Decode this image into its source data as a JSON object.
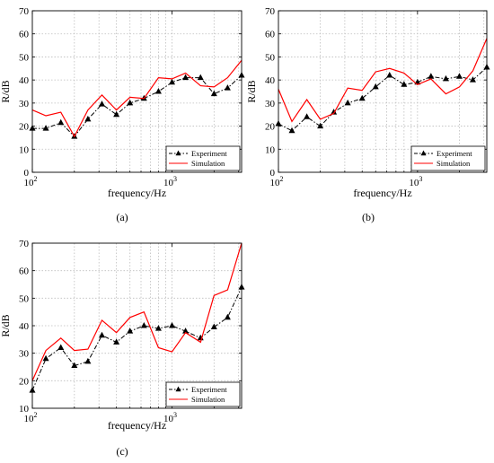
{
  "figure": {
    "colors": {
      "experiment": "#000000",
      "simulation": "#ff0000"
    }
  },
  "chart_data": [
    {
      "type": "line",
      "caption": "(a)",
      "xlabel": "frequency/Hz",
      "ylabel": "R/dB",
      "xscale": "log",
      "xlim": [
        100,
        3150
      ],
      "ylim": [
        0,
        70
      ],
      "yticks": [
        "0",
        "10",
        "20",
        "30",
        "40",
        "50",
        "60",
        "70"
      ],
      "xticks": [
        {
          "base": "10",
          "exp": "2"
        },
        {
          "base": "10",
          "exp": "3"
        }
      ],
      "legend_position": "bottom-right",
      "x": [
        100,
        125,
        160,
        200,
        250,
        315,
        400,
        500,
        630,
        800,
        1000,
        1250,
        1600,
        2000,
        2500,
        3150
      ],
      "series": [
        {
          "name": "Experiment",
          "style": "dash-dot-triangle",
          "values": [
            19,
            19,
            21.5,
            15.5,
            23,
            29.5,
            25,
            30,
            32,
            35,
            39,
            41,
            41,
            34,
            36.5,
            42
          ]
        },
        {
          "name": "Simulation",
          "style": "solid",
          "values": [
            27,
            24.5,
            26,
            15.5,
            27,
            33.5,
            27,
            32.5,
            32,
            41,
            40.5,
            43,
            37.5,
            37,
            41,
            48.5
          ]
        }
      ]
    },
    {
      "type": "line",
      "caption": "(b)",
      "xlabel": "frequency/Hz",
      "ylabel": "R/dB",
      "xscale": "log",
      "xlim": [
        100,
        3150
      ],
      "ylim": [
        0,
        70
      ],
      "yticks": [
        "0",
        "10",
        "20",
        "30",
        "40",
        "50",
        "60",
        "70"
      ],
      "xticks": [
        {
          "base": "10",
          "exp": "2"
        },
        {
          "base": "10",
          "exp": "3"
        }
      ],
      "legend_position": "bottom-right",
      "x": [
        100,
        125,
        160,
        200,
        250,
        315,
        400,
        500,
        630,
        800,
        1000,
        1250,
        1600,
        2000,
        2500,
        3150
      ],
      "series": [
        {
          "name": "Experiment",
          "style": "dash-dot-triangle",
          "values": [
            21,
            18,
            24,
            20,
            26,
            30,
            32,
            37,
            42,
            38,
            39,
            41.5,
            40.5,
            41.5,
            40,
            45.5
          ]
        },
        {
          "name": "Simulation",
          "style": "solid",
          "values": [
            36,
            22,
            31.5,
            23,
            25.5,
            36.5,
            35.5,
            43.5,
            45,
            43,
            38,
            40.5,
            34,
            37,
            44,
            58
          ]
        }
      ]
    },
    {
      "type": "line",
      "caption": "(c)",
      "xlabel": "frequency/Hz",
      "ylabel": "R/dB",
      "xscale": "log",
      "xlim": [
        100,
        3150
      ],
      "ylim": [
        10,
        70
      ],
      "yticks": [
        "10",
        "20",
        "30",
        "40",
        "50",
        "60",
        "70"
      ],
      "xticks": [
        {
          "base": "10",
          "exp": "2"
        },
        {
          "base": "10",
          "exp": "3"
        }
      ],
      "legend_position": "bottom-right",
      "x": [
        100,
        125,
        160,
        200,
        250,
        315,
        400,
        500,
        630,
        800,
        1000,
        1250,
        1600,
        2000,
        2500,
        3150
      ],
      "series": [
        {
          "name": "Experiment",
          "style": "dash-dot-triangle",
          "values": [
            16.5,
            28,
            32,
            25.5,
            27,
            36.5,
            34,
            38,
            40,
            39,
            40,
            38,
            35.5,
            39.5,
            43,
            54
          ]
        },
        {
          "name": "Simulation",
          "style": "solid",
          "values": [
            20,
            31,
            35.5,
            31,
            31.5,
            42,
            37.5,
            43,
            45,
            32,
            30.5,
            37.5,
            34,
            51,
            53,
            70
          ]
        }
      ]
    }
  ]
}
